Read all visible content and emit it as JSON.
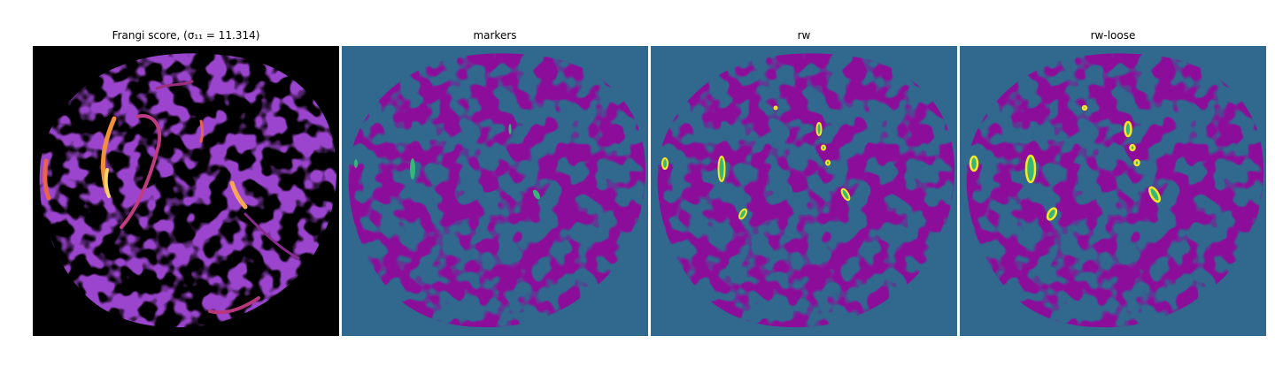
{
  "figure": {
    "panels": [
      {
        "title": "Frangi score, (σ₁₁ = 11.314)",
        "background": "#000000",
        "colormap": "magma",
        "content": "frangi-vesselness-heatmap"
      },
      {
        "title": "markers",
        "background": "#30688e",
        "foreground": "#440154",
        "marker_color": "#35b779",
        "content": "marker-segmentation"
      },
      {
        "title": "rw",
        "background": "#30688e",
        "foreground": "#440154",
        "marker_color": "#35b779",
        "outline_color": "#fde725",
        "content": "random-walker-segmentation"
      },
      {
        "title": "rw-loose",
        "background": "#30688e",
        "foreground": "#440154",
        "marker_color": "#35b779",
        "outline_color": "#fde725",
        "content": "random-walker-loose-segmentation"
      }
    ]
  }
}
